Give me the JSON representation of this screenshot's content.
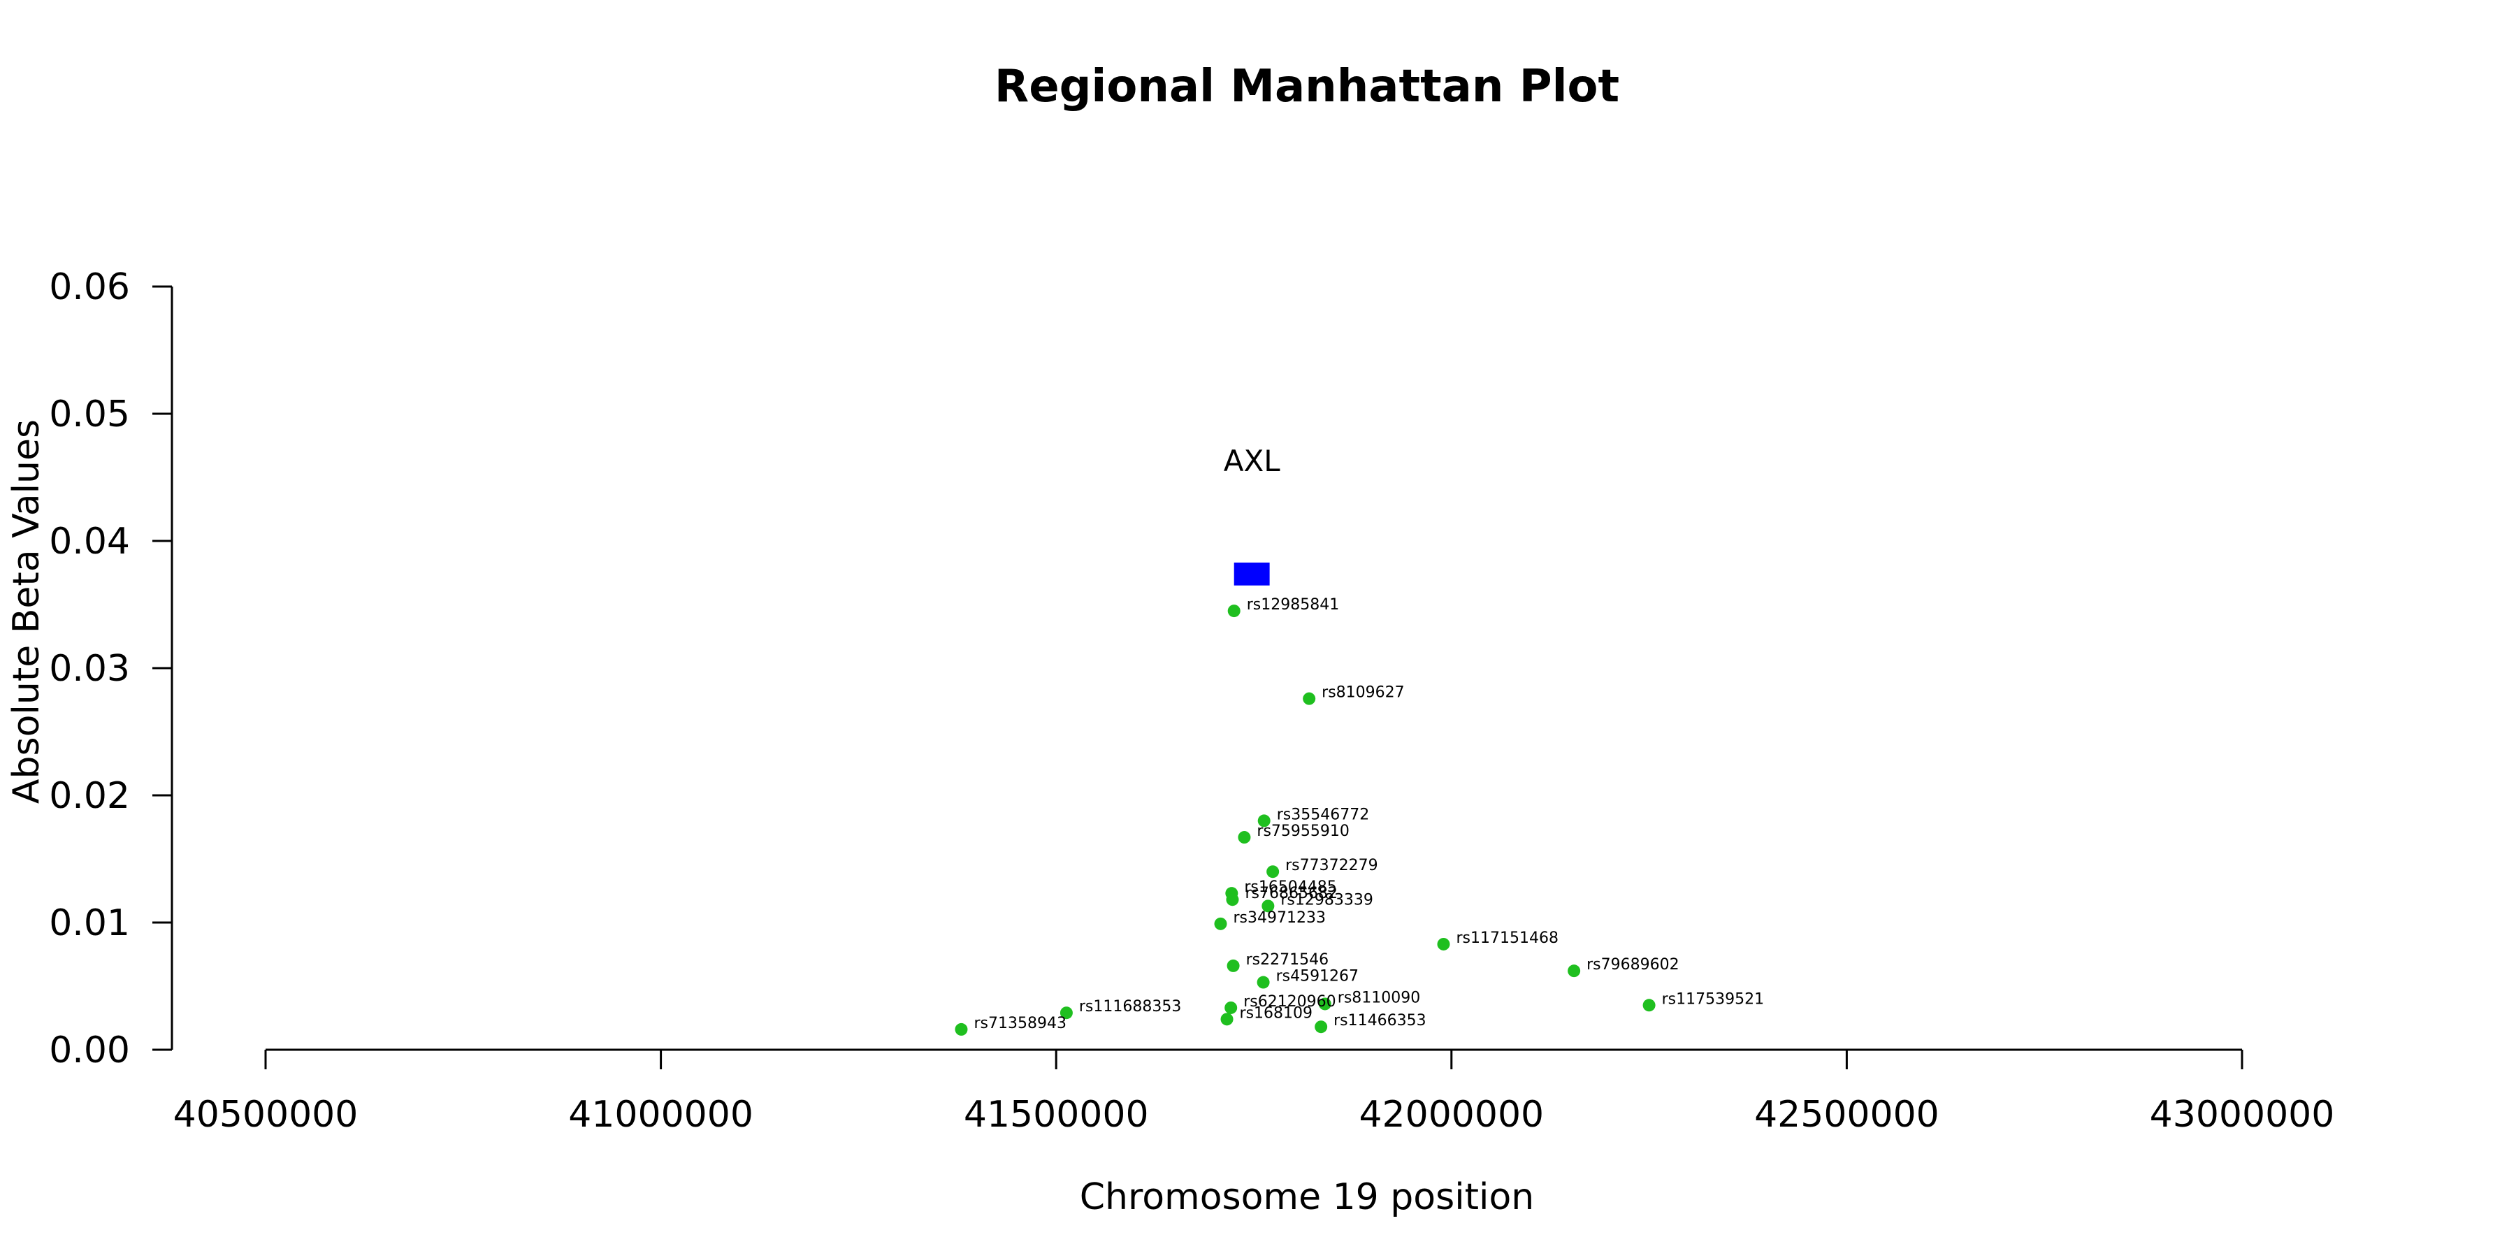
{
  "chart_data": {
    "type": "scatter",
    "title": "Regional Manhattan Plot",
    "xlabel": "Chromosome 19 position",
    "ylabel": "Absolute Beta Values",
    "xlim": [
      40500000,
      43000000
    ],
    "ylim": [
      0,
      0.06
    ],
    "x_ticks": [
      "40500000",
      "41000000",
      "41500000",
      "42000000",
      "42500000",
      "43000000"
    ],
    "y_ticks": [
      "0.00",
      "0.01",
      "0.02",
      "0.03",
      "0.04",
      "0.05",
      "0.06"
    ],
    "grid": false,
    "point_color": "#1fbf1f",
    "gene": {
      "name": "AXL",
      "start": 41725000,
      "end": 41770000,
      "color": "#0000ff",
      "y_low": 0.0365,
      "y_high": 0.0383,
      "label_y": 0.0455
    },
    "points": [
      {
        "snp": "rs12985841",
        "x": 41725000,
        "y": 0.0345
      },
      {
        "snp": "rs8109627",
        "x": 41820000,
        "y": 0.0276
      },
      {
        "snp": "rs35546772",
        "x": 41763000,
        "y": 0.018
      },
      {
        "snp": "rs75955910",
        "x": 41738000,
        "y": 0.0167
      },
      {
        "snp": "rs77372279",
        "x": 41774000,
        "y": 0.014
      },
      {
        "snp": "rs16504485",
        "x": 41722000,
        "y": 0.0123
      },
      {
        "snp": "rs76865682",
        "x": 41723000,
        "y": 0.0118
      },
      {
        "snp": "rs12983339",
        "x": 41768000,
        "y": 0.0113
      },
      {
        "snp": "rs34971233",
        "x": 41708000,
        "y": 0.0099
      },
      {
        "snp": "rs117151468",
        "x": 41990000,
        "y": 0.0083
      },
      {
        "snp": "rs79689602",
        "x": 42155000,
        "y": 0.0062
      },
      {
        "snp": "rs2271546",
        "x": 41724000,
        "y": 0.0066
      },
      {
        "snp": "rs4591267",
        "x": 41762000,
        "y": 0.0053
      },
      {
        "snp": "rs8110090",
        "x": 41840000,
        "y": 0.0036
      },
      {
        "snp": "rs62120960",
        "x": 41721000,
        "y": 0.0033
      },
      {
        "snp": "rs117539521",
        "x": 42250000,
        "y": 0.0035
      },
      {
        "snp": "rs111688353",
        "x": 41513000,
        "y": 0.0029
      },
      {
        "snp": "rs168109",
        "x": 41716000,
        "y": 0.0024
      },
      {
        "snp": "rs11466353",
        "x": 41835000,
        "y": 0.0018
      },
      {
        "snp": "rs71358943",
        "x": 41380000,
        "y": 0.0016
      }
    ]
  }
}
